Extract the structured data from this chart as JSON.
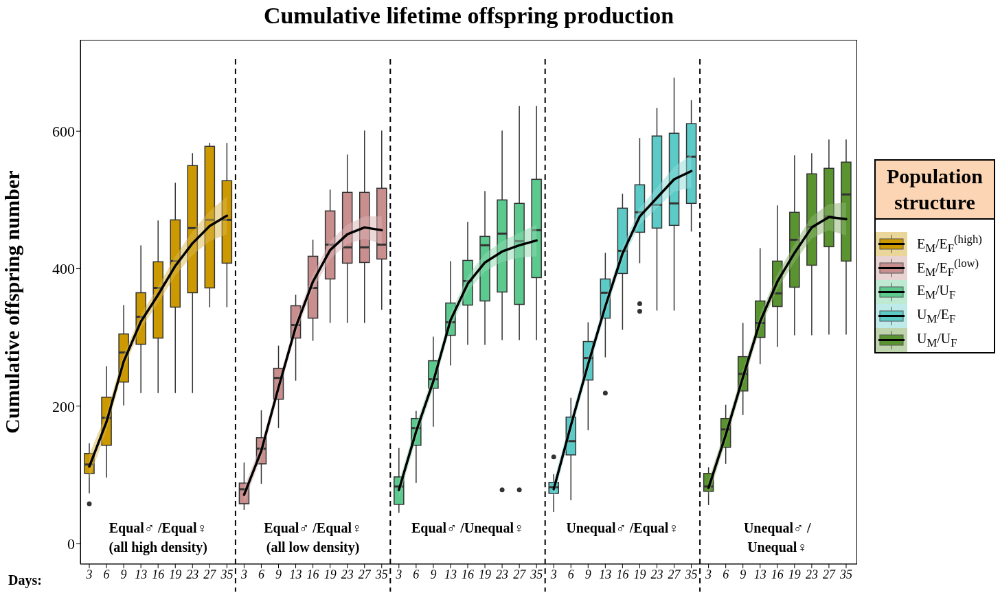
{
  "chart_data": {
    "type": "box",
    "title": "Cumulative lifetime offspring production",
    "ylabel": "Cumulative offspring number",
    "xlabel": "Days:",
    "legend_title": "Population structure",
    "legend": "right",
    "grid": false,
    "categories": [
      "3",
      "6",
      "9",
      "13",
      "16",
      "19",
      "23",
      "27",
      "35",
      "3",
      "6",
      "9",
      "13",
      "16",
      "19",
      "23",
      "27",
      "35",
      "3",
      "6",
      "9",
      "13",
      "16",
      "19",
      "23",
      "27",
      "35",
      "3",
      "6",
      "9",
      "13",
      "16",
      "19",
      "23",
      "27",
      "35",
      "3",
      "6",
      "9",
      "13",
      "16",
      "19",
      "23",
      "27",
      "35"
    ],
    "ylim": [
      -30,
      733
    ],
    "yticks": [
      0,
      200,
      400,
      600
    ],
    "annotations": [
      "Equal♂ /Equal♀\n(all high density)",
      "Equal♂ /Equal♀\n(all low density)",
      "Equal♂ /Unequal♀",
      "Unequal♂ /Equal♀",
      "Unequal♂ /\nUnequal♀"
    ],
    "series": [
      {
        "name": "E$_{M}$/E$_{F}$$^{(high)}$",
        "color": "#cc9900",
        "boxes": [
          {
            "low": 73,
            "q1": 102,
            "median": 115,
            "q3": 131,
            "high": 146,
            "outliers": [
              58
            ]
          },
          {
            "low": 96,
            "q1": 143,
            "median": 183,
            "q3": 213,
            "high": 258
          },
          {
            "low": 201,
            "q1": 235,
            "median": 278,
            "q3": 305,
            "high": 347
          },
          {
            "low": 219,
            "q1": 290,
            "median": 330,
            "q3": 365,
            "high": 434
          },
          {
            "low": 219,
            "q1": 299,
            "median": 372,
            "q3": 410,
            "high": 470
          },
          {
            "low": 219,
            "q1": 344,
            "median": 411,
            "q3": 471,
            "high": 525
          },
          {
            "low": 219,
            "q1": 365,
            "median": 459,
            "q3": 550,
            "high": 568
          },
          {
            "low": 344,
            "q1": 372,
            "median": 471,
            "q3": 578,
            "high": 583
          },
          {
            "low": 344,
            "q1": 408,
            "median": 471,
            "q3": 528,
            "high": 583
          },
          null,
          null,
          null,
          null,
          null,
          null,
          null,
          null,
          null,
          null,
          null,
          null,
          null,
          null,
          null,
          null,
          null,
          null,
          null,
          null,
          null,
          null,
          null,
          null,
          null,
          null,
          null,
          null,
          null,
          null,
          null,
          null,
          null,
          null,
          null,
          null
        ]
      },
      {
        "name": "E$_{M}$/E$_{F}$$^{(low)}$",
        "color": "#c98f8f",
        "boxes": [
          null,
          null,
          null,
          null,
          null,
          null,
          null,
          null,
          null,
          {
            "low": 49,
            "q1": 58,
            "median": 79,
            "q3": 88,
            "high": 118
          },
          {
            "low": 87,
            "q1": 116,
            "median": 138,
            "q3": 154,
            "high": 194
          },
          {
            "low": 168,
            "q1": 210,
            "median": 241,
            "q3": 255,
            "high": 288
          },
          {
            "low": 237,
            "q1": 299,
            "median": 318,
            "q3": 346,
            "high": 362
          },
          {
            "low": 295,
            "q1": 328,
            "median": 372,
            "q3": 418,
            "high": 442
          },
          {
            "low": 321,
            "q1": 385,
            "median": 435,
            "q3": 484,
            "high": 515
          },
          {
            "low": 321,
            "q1": 408,
            "median": 431,
            "q3": 511,
            "high": 566
          },
          {
            "low": 321,
            "q1": 409,
            "median": 431,
            "q3": 511,
            "high": 601
          },
          {
            "low": 340,
            "q1": 414,
            "median": 435,
            "q3": 517,
            "high": 601
          },
          null,
          null,
          null,
          null,
          null,
          null,
          null,
          null,
          null,
          null,
          null,
          null,
          null,
          null,
          null,
          null,
          null,
          null,
          null,
          null,
          null,
          null,
          null,
          null,
          null,
          null,
          null
        ]
      },
      {
        "name": "E$_{M}$/U$_{F}$",
        "color": "#5cc98f",
        "boxes": [
          null,
          null,
          null,
          null,
          null,
          null,
          null,
          null,
          null,
          null,
          null,
          null,
          null,
          null,
          null,
          null,
          null,
          null,
          {
            "low": 45,
            "q1": 57,
            "median": 83,
            "q3": 97,
            "high": 139
          },
          {
            "low": 88,
            "q1": 143,
            "median": 168,
            "q3": 182,
            "high": 193
          },
          {
            "low": 170,
            "q1": 226,
            "median": 239,
            "q3": 266,
            "high": 301
          },
          {
            "low": 259,
            "q1": 303,
            "median": 322,
            "q3": 350,
            "high": 411
          },
          {
            "low": 289,
            "q1": 347,
            "median": 382,
            "q3": 412,
            "high": 468
          },
          {
            "low": 289,
            "q1": 353,
            "median": 434,
            "q3": 447,
            "high": 513
          },
          {
            "low": 296,
            "q1": 366,
            "median": 451,
            "q3": 500,
            "high": 601,
            "outliers": [
              78
            ]
          },
          {
            "low": 296,
            "q1": 348,
            "median": 440,
            "q3": 495,
            "high": 637,
            "outliers": [
              78
            ]
          },
          {
            "low": 296,
            "q1": 387,
            "median": 456,
            "q3": 530,
            "high": 637
          },
          null,
          null,
          null,
          null,
          null,
          null,
          null,
          null,
          null,
          null,
          null,
          null,
          null,
          null,
          null,
          null,
          null,
          null
        ]
      },
      {
        "name": "U$_{M}$/E$_{F}$",
        "color": "#5ccbc8",
        "boxes": [
          null,
          null,
          null,
          null,
          null,
          null,
          null,
          null,
          null,
          null,
          null,
          null,
          null,
          null,
          null,
          null,
          null,
          null,
          null,
          null,
          null,
          null,
          null,
          null,
          null,
          null,
          null,
          {
            "low": 46,
            "q1": 73,
            "median": 82,
            "q3": 89,
            "high": 101,
            "outliers": [
              126
            ]
          },
          {
            "low": 63,
            "q1": 129,
            "median": 149,
            "q3": 184,
            "high": 212
          },
          {
            "low": 165,
            "q1": 238,
            "median": 270,
            "q3": 294,
            "high": 322
          },
          {
            "low": 271,
            "q1": 328,
            "median": 365,
            "q3": 385,
            "high": 423,
            "outliers": [
              219
            ]
          },
          {
            "low": 311,
            "q1": 393,
            "median": 426,
            "q3": 488,
            "high": 509
          },
          {
            "low": 408,
            "q1": 453,
            "median": 482,
            "q3": 522,
            "high": 590,
            "outliers": [
              349,
              338
            ]
          },
          {
            "low": 339,
            "q1": 459,
            "median": 493,
            "q3": 593,
            "high": 634
          },
          {
            "low": 339,
            "q1": 463,
            "median": 495,
            "q3": 597,
            "high": 678
          },
          {
            "low": 454,
            "q1": 495,
            "median": 563,
            "q3": 611,
            "high": 645
          },
          null,
          null,
          null,
          null,
          null,
          null,
          null,
          null,
          null
        ]
      },
      {
        "name": "U$_{M}$/U$_{F}$",
        "color": "#5a9430",
        "boxes": [
          null,
          null,
          null,
          null,
          null,
          null,
          null,
          null,
          null,
          null,
          null,
          null,
          null,
          null,
          null,
          null,
          null,
          null,
          null,
          null,
          null,
          null,
          null,
          null,
          null,
          null,
          null,
          null,
          null,
          null,
          null,
          null,
          null,
          null,
          null,
          null,
          {
            "low": 56,
            "q1": 76,
            "median": 83,
            "q3": 102,
            "high": 111
          },
          {
            "low": 116,
            "q1": 140,
            "median": 166,
            "q3": 182,
            "high": 202
          },
          {
            "low": 187,
            "q1": 222,
            "median": 247,
            "q3": 272,
            "high": 321
          },
          {
            "low": 261,
            "q1": 300,
            "median": 321,
            "q3": 353,
            "high": 430
          },
          {
            "low": 286,
            "q1": 345,
            "median": 364,
            "q3": 411,
            "high": 492
          },
          {
            "low": 303,
            "q1": 373,
            "median": 442,
            "q3": 482,
            "high": 565
          },
          {
            "low": 303,
            "q1": 405,
            "median": 461,
            "q3": 538,
            "high": 568
          },
          {
            "low": 304,
            "q1": 432,
            "median": 476,
            "q3": 546,
            "high": 588
          },
          {
            "low": 304,
            "q1": 411,
            "median": 508,
            "q3": 555,
            "high": 588
          }
        ]
      },
      {
        "type": "line",
        "color": "#000000",
        "values": [
          112,
          177,
          265,
          323,
          362,
          404,
          437,
          462,
          477,
          null,
          null,
          null,
          null,
          null,
          null,
          null,
          null,
          null,
          null,
          null,
          null,
          null,
          null,
          null,
          null,
          null,
          null,
          null,
          null,
          null,
          null,
          null,
          null,
          null,
          null,
          null,
          null,
          null,
          null,
          null,
          null,
          null,
          null,
          null,
          null
        ],
        "lower": [
          95,
          165,
          255,
          313,
          350,
          390,
          420,
          440,
          450,
          null,
          null,
          null,
          null,
          null,
          null,
          null,
          null,
          null,
          null,
          null,
          null,
          null,
          null,
          null,
          null,
          null,
          null,
          null,
          null,
          null,
          null,
          null,
          null,
          null,
          null,
          null,
          null,
          null,
          null,
          null,
          null,
          null,
          null,
          null,
          null
        ],
        "upper": [
          130,
          190,
          275,
          333,
          374,
          418,
          454,
          484,
          505,
          null,
          null,
          null,
          null,
          null,
          null,
          null,
          null,
          null,
          null,
          null,
          null,
          null,
          null,
          null,
          null,
          null,
          null,
          null,
          null,
          null,
          null,
          null,
          null,
          null,
          null,
          null,
          null,
          null,
          null,
          null,
          null,
          null,
          null,
          null,
          null
        ]
      },
      {
        "type": "line",
        "color": "#000000",
        "values": [
          null,
          null,
          null,
          null,
          null,
          null,
          null,
          null,
          null,
          71,
          135,
          227,
          315,
          381,
          427,
          450,
          460,
          456,
          null,
          null,
          null,
          null,
          null,
          null,
          null,
          null,
          null,
          null,
          null,
          null,
          null,
          null,
          null,
          null,
          null,
          null,
          null,
          null,
          null,
          null,
          null,
          null,
          null,
          null,
          null
        ],
        "lower": [
          null,
          null,
          null,
          null,
          null,
          null,
          null,
          null,
          null,
          60,
          125,
          218,
          306,
          370,
          414,
          436,
          444,
          436,
          null,
          null,
          null,
          null,
          null,
          null,
          null,
          null,
          null,
          null,
          null,
          null,
          null,
          null,
          null,
          null,
          null,
          null,
          null,
          null,
          null,
          null,
          null,
          null,
          null,
          null,
          null
        ],
        "upper": [
          null,
          null,
          null,
          null,
          null,
          null,
          null,
          null,
          null,
          82,
          145,
          236,
          324,
          392,
          440,
          464,
          476,
          476,
          null,
          null,
          null,
          null,
          null,
          null,
          null,
          null,
          null,
          null,
          null,
          null,
          null,
          null,
          null,
          null,
          null,
          null,
          null,
          null,
          null,
          null,
          null,
          null,
          null,
          null,
          null
        ]
      },
      {
        "type": "line",
        "color": "#000000",
        "values": [
          null,
          null,
          null,
          null,
          null,
          null,
          null,
          null,
          null,
          null,
          null,
          null,
          null,
          null,
          null,
          null,
          null,
          null,
          78,
          163,
          236,
          325,
          378,
          409,
          425,
          434,
          441,
          null,
          null,
          null,
          null,
          null,
          null,
          null,
          null,
          null,
          null,
          null,
          null,
          null,
          null,
          null,
          null,
          null,
          null
        ],
        "lower": [
          null,
          null,
          null,
          null,
          null,
          null,
          null,
          null,
          null,
          null,
          null,
          null,
          null,
          null,
          null,
          null,
          null,
          null,
          66,
          152,
          226,
          315,
          367,
          396,
          410,
          416,
          418,
          null,
          null,
          null,
          null,
          null,
          null,
          null,
          null,
          null,
          null,
          null,
          null,
          null,
          null,
          null,
          null,
          null,
          null
        ],
        "upper": [
          null,
          null,
          null,
          null,
          null,
          null,
          null,
          null,
          null,
          null,
          null,
          null,
          null,
          null,
          null,
          null,
          null,
          null,
          90,
          174,
          246,
          335,
          389,
          422,
          440,
          452,
          464,
          null,
          null,
          null,
          null,
          null,
          null,
          null,
          null,
          null,
          null,
          null,
          null,
          null,
          null,
          null,
          null,
          null,
          null
        ]
      },
      {
        "type": "line",
        "color": "#000000",
        "values": [
          null,
          null,
          null,
          null,
          null,
          null,
          null,
          null,
          null,
          null,
          null,
          null,
          null,
          null,
          null,
          null,
          null,
          null,
          null,
          null,
          null,
          null,
          null,
          null,
          null,
          null,
          null,
          79,
          172,
          261,
          345,
          422,
          476,
          503,
          530,
          542,
          null,
          null,
          null,
          null,
          null,
          null,
          null,
          null,
          null
        ],
        "lower": [
          null,
          null,
          null,
          null,
          null,
          null,
          null,
          null,
          null,
          null,
          null,
          null,
          null,
          null,
          null,
          null,
          null,
          null,
          null,
          null,
          null,
          null,
          null,
          null,
          null,
          null,
          null,
          67,
          161,
          251,
          335,
          412,
          464,
          488,
          512,
          518,
          null,
          null,
          null,
          null,
          null,
          null,
          null,
          null,
          null
        ],
        "upper": [
          null,
          null,
          null,
          null,
          null,
          null,
          null,
          null,
          null,
          null,
          null,
          null,
          null,
          null,
          null,
          null,
          null,
          null,
          null,
          null,
          null,
          null,
          null,
          null,
          null,
          null,
          null,
          91,
          183,
          271,
          355,
          432,
          488,
          518,
          548,
          566,
          null,
          null,
          null,
          null,
          null,
          null,
          null,
          null,
          null
        ]
      },
      {
        "type": "line",
        "color": "#000000",
        "values": [
          null,
          null,
          null,
          null,
          null,
          null,
          null,
          null,
          null,
          null,
          null,
          null,
          null,
          null,
          null,
          null,
          null,
          null,
          null,
          null,
          null,
          null,
          null,
          null,
          null,
          null,
          null,
          null,
          null,
          null,
          null,
          null,
          null,
          null,
          null,
          null,
          81,
          158,
          242,
          323,
          381,
          423,
          460,
          475,
          472
        ],
        "lower": [
          null,
          null,
          null,
          null,
          null,
          null,
          null,
          null,
          null,
          null,
          null,
          null,
          null,
          null,
          null,
          null,
          null,
          null,
          null,
          null,
          null,
          null,
          null,
          null,
          null,
          null,
          null,
          null,
          null,
          null,
          null,
          null,
          null,
          null,
          null,
          null,
          70,
          148,
          232,
          313,
          370,
          410,
          444,
          456,
          448
        ],
        "upper": [
          null,
          null,
          null,
          null,
          null,
          null,
          null,
          null,
          null,
          null,
          null,
          null,
          null,
          null,
          null,
          null,
          null,
          null,
          null,
          null,
          null,
          null,
          null,
          null,
          null,
          null,
          null,
          null,
          null,
          null,
          null,
          null,
          null,
          null,
          null,
          null,
          92,
          168,
          252,
          333,
          392,
          436,
          476,
          494,
          496
        ]
      }
    ]
  }
}
